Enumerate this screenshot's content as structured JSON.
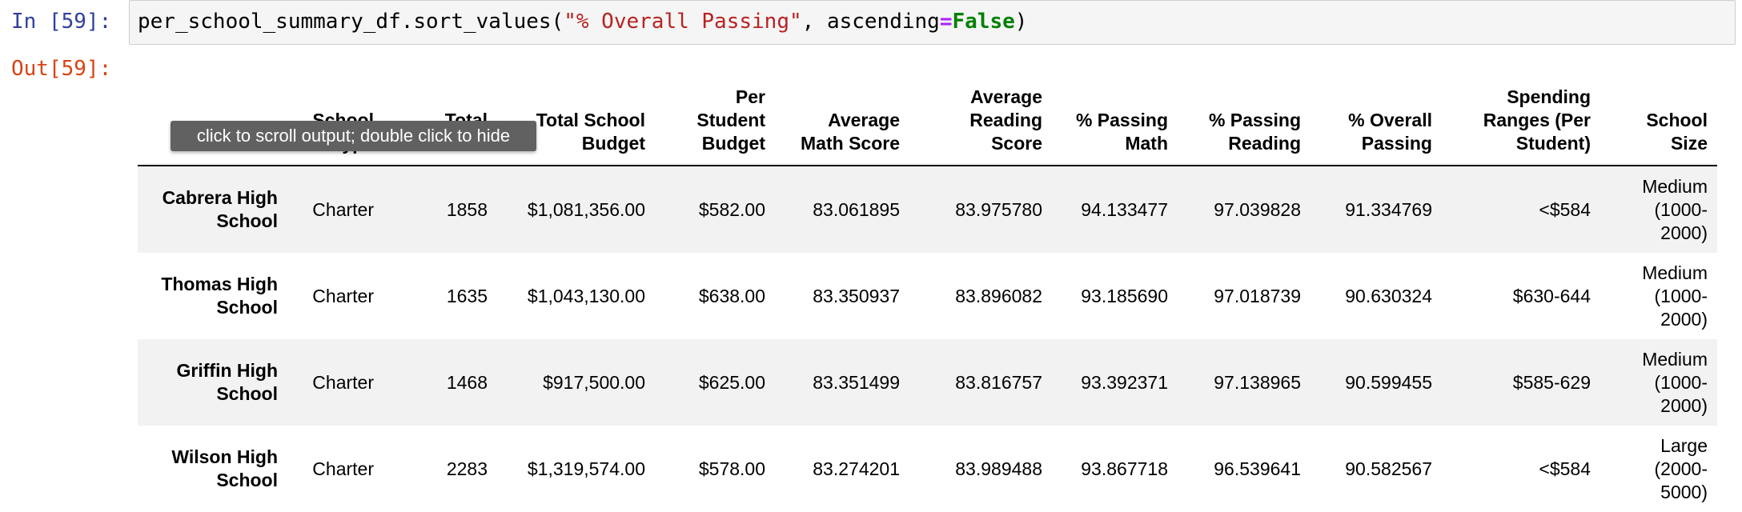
{
  "input_prompt": "In [59]:",
  "output_prompt": "Out[59]:",
  "code": {
    "obj": "per_school_summary_df.sort_values(",
    "arg_str": "\"% Overall Passing\"",
    "sep": ", ascending",
    "eq": "=",
    "kw": "False",
    "close": ")"
  },
  "tooltip": "click to scroll output; double click to hide",
  "columns": [
    "",
    "School\nType",
    "Total\nStudents",
    "Total School\nBudget",
    "Per\nStudent\nBudget",
    "Average\nMath Score",
    "Average\nReading\nScore",
    "% Passing\nMath",
    "% Passing\nReading",
    "% Overall\nPassing",
    "Spending\nRanges (Per\nStudent)",
    "School\nSize"
  ],
  "rows": [
    [
      "Cabrera High\nSchool",
      "Charter",
      "1858",
      "$1,081,356.00",
      "$582.00",
      "83.061895",
      "83.975780",
      "94.133477",
      "97.039828",
      "91.334769",
      "<$584",
      "Medium\n(1000-\n2000)"
    ],
    [
      "Thomas High\nSchool",
      "Charter",
      "1635",
      "$1,043,130.00",
      "$638.00",
      "83.350937",
      "83.896082",
      "93.185690",
      "97.018739",
      "90.630324",
      "$630-644",
      "Medium\n(1000-\n2000)"
    ],
    [
      "Griffin High\nSchool",
      "Charter",
      "1468",
      "$917,500.00",
      "$625.00",
      "83.351499",
      "83.816757",
      "93.392371",
      "97.138965",
      "90.599455",
      "$585-629",
      "Medium\n(1000-\n2000)"
    ],
    [
      "Wilson High\nSchool",
      "Charter",
      "2283",
      "$1,319,574.00",
      "$578.00",
      "83.274201",
      "83.989488",
      "93.867718",
      "96.539641",
      "90.582567",
      "<$584",
      "Large\n(2000-\n5000)"
    ]
  ]
}
